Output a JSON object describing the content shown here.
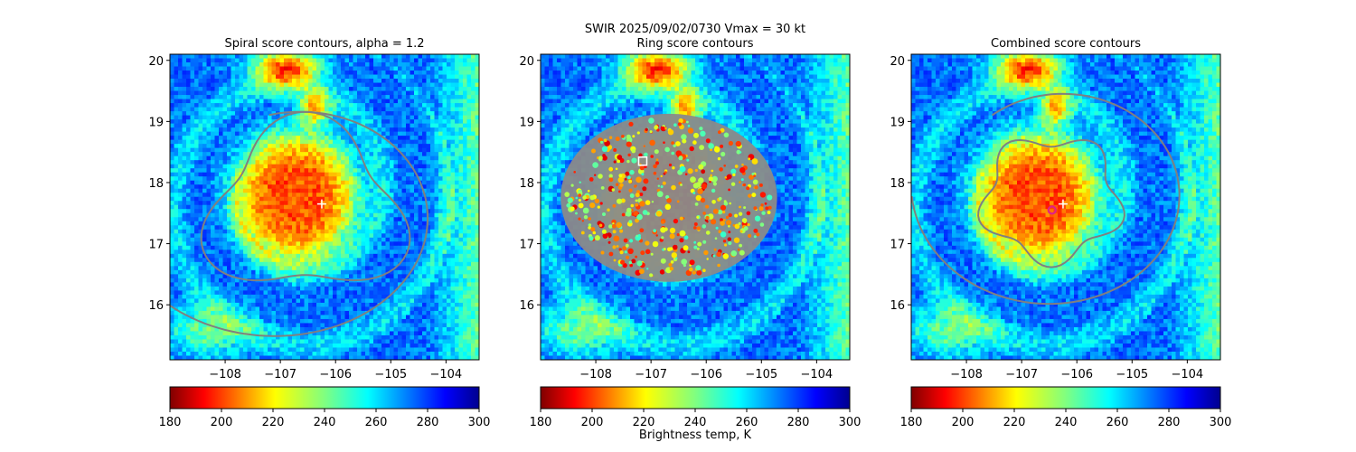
{
  "suptitle": "SWIR  2025/09/02/0730    Vmax = 30 kt",
  "colorbar_label": "Brightness temp, K",
  "colormap": "jet_r",
  "contour_color": "#808080",
  "chart_data": [
    {
      "type": "heatmap",
      "title": "Spiral score contours, alpha =  1.2",
      "xlim": [
        -109.0,
        -103.4
      ],
      "ylim": [
        15.1,
        20.1
      ],
      "x_ticks": [
        -108,
        -107,
        -106,
        -105,
        -104
      ],
      "x_tick_labels": [
        "−108",
        "−107",
        "−106",
        "−105",
        "−104"
      ],
      "y_ticks": [
        16,
        17,
        18,
        19,
        20
      ],
      "y_tick_labels": [
        "16",
        "17",
        "18",
        "19",
        "20"
      ],
      "colorbar_ticks": [
        180,
        200,
        220,
        240,
        260,
        280,
        300
      ],
      "colorbar_range": [
        180,
        300
      ],
      "markers": [
        {
          "symbol": "plus",
          "color": "#ffffff",
          "lon": -106.25,
          "lat": 17.65
        }
      ]
    },
    {
      "type": "heatmap",
      "title": "Ring score contours",
      "xlim": [
        -109.0,
        -103.4
      ],
      "ylim": [
        15.1,
        20.1
      ],
      "x_ticks": [
        -108,
        -107,
        -106,
        -105,
        -104
      ],
      "x_tick_labels": [
        "−108",
        "−107",
        "−106",
        "−105",
        "−104"
      ],
      "y_ticks": [
        16,
        17,
        18,
        19,
        20
      ],
      "y_tick_labels": [
        "16",
        "17",
        "18",
        "19",
        "20"
      ],
      "colorbar_ticks": [
        180,
        200,
        220,
        240,
        260,
        280,
        300
      ],
      "colorbar_range": [
        180,
        300
      ],
      "markers": [
        {
          "symbol": "square",
          "color": "#ffffff",
          "lon": -107.15,
          "lat": 18.35
        }
      ]
    },
    {
      "type": "heatmap",
      "title": "Combined score contours",
      "xlim": [
        -109.0,
        -103.4
      ],
      "ylim": [
        15.1,
        20.1
      ],
      "x_ticks": [
        -108,
        -107,
        -106,
        -105,
        -104
      ],
      "x_tick_labels": [
        "−108",
        "−107",
        "−106",
        "−105",
        "−104"
      ],
      "y_ticks": [
        16,
        17,
        18,
        19,
        20
      ],
      "y_tick_labels": [
        "16",
        "17",
        "18",
        "19",
        "20"
      ],
      "colorbar_ticks": [
        180,
        200,
        220,
        240,
        260,
        280,
        300
      ],
      "colorbar_range": [
        180,
        300
      ],
      "markers": [
        {
          "symbol": "plus",
          "color": "#ffffff",
          "lon": -106.25,
          "lat": 17.65
        },
        {
          "symbol": "circle",
          "color": "#e0208a",
          "lon": -106.45,
          "lat": 17.55
        }
      ]
    }
  ]
}
